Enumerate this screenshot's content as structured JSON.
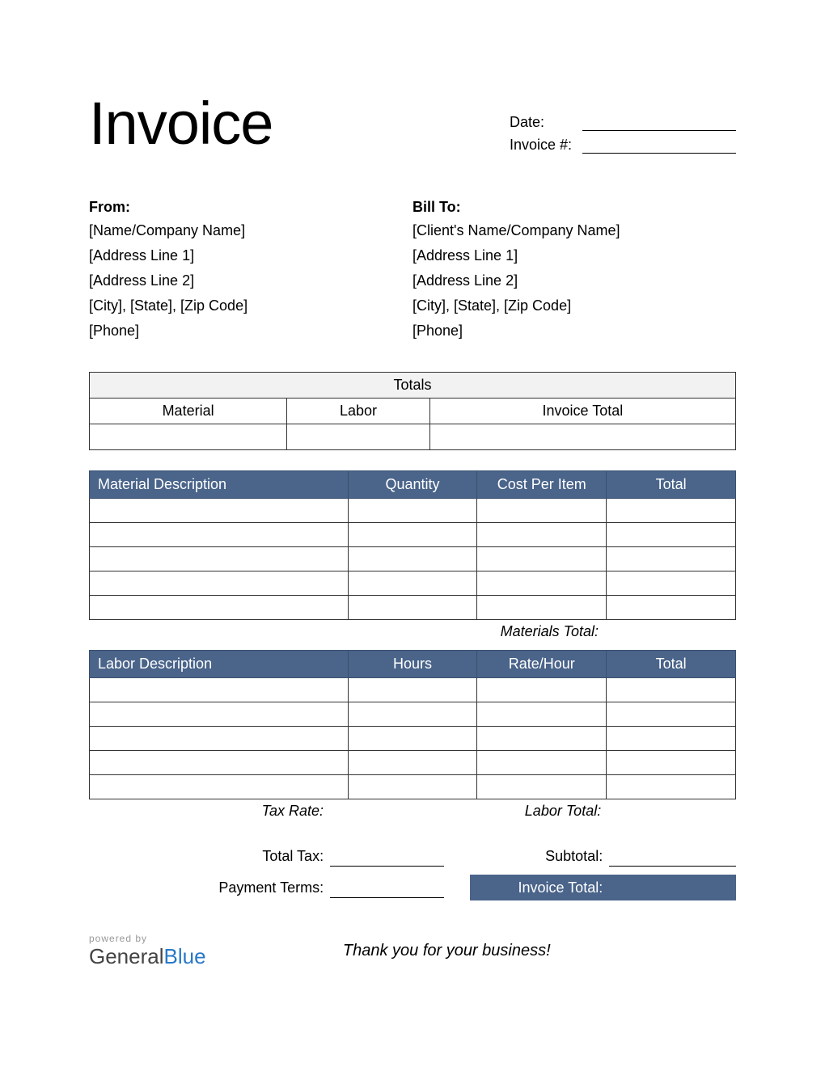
{
  "title": "Invoice",
  "meta": {
    "date_label": "Date:",
    "invoice_num_label": "Invoice #:",
    "date_value": "",
    "invoice_num_value": ""
  },
  "from": {
    "heading": "From:",
    "lines": [
      "[Name/Company Name]",
      "[Address Line 1]",
      "[Address Line 2]",
      "[City], [State], [Zip Code]",
      "[Phone]"
    ]
  },
  "bill_to": {
    "heading": "Bill To:",
    "lines": [
      "[Client's Name/Company Name]",
      "[Address Line 1]",
      "[Address Line 2]",
      "[City], [State], [Zip Code]",
      "[Phone]"
    ]
  },
  "totals_table": {
    "header": "Totals",
    "columns": [
      "Material",
      "Labor",
      "Invoice Total"
    ],
    "values": [
      "",
      "",
      ""
    ]
  },
  "materials": {
    "columns": [
      "Material Description",
      "Quantity",
      "Cost Per Item",
      "Total"
    ],
    "rows": [
      [
        "",
        "",
        "",
        ""
      ],
      [
        "",
        "",
        "",
        ""
      ],
      [
        "",
        "",
        "",
        ""
      ],
      [
        "",
        "",
        "",
        ""
      ],
      [
        "",
        "",
        "",
        ""
      ]
    ],
    "subtotal_label": "Materials Total:",
    "subtotal_value": ""
  },
  "labor": {
    "columns": [
      "Labor Description",
      "Hours",
      "Rate/Hour",
      "Total"
    ],
    "rows": [
      [
        "",
        "",
        "",
        ""
      ],
      [
        "",
        "",
        "",
        ""
      ],
      [
        "",
        "",
        "",
        ""
      ],
      [
        "",
        "",
        "",
        ""
      ],
      [
        "",
        "",
        "",
        ""
      ]
    ],
    "subtotal_label": "Labor Total:",
    "subtotal_value": ""
  },
  "summary": {
    "tax_rate_label": "Tax Rate:",
    "tax_rate_value": "",
    "total_tax_label": "Total Tax:",
    "total_tax_value": "",
    "payment_terms_label": "Payment Terms:",
    "payment_terms_value": "",
    "subtotal_label": "Subtotal:",
    "subtotal_value": "",
    "invoice_total_label": "Invoice Total:",
    "invoice_total_value": ""
  },
  "footer": {
    "powered_by": "powered by",
    "logo_general": "General",
    "logo_blue": "Blue",
    "thanks": "Thank you for your business!"
  },
  "colors": {
    "header_bg": "#4a648a",
    "header_border": "#3a506f",
    "totals_head_bg": "#f2f2f2",
    "border": "#333333",
    "text": "#000000",
    "white": "#ffffff",
    "logo_blue": "#2878c8",
    "powered_gray": "#999999"
  }
}
